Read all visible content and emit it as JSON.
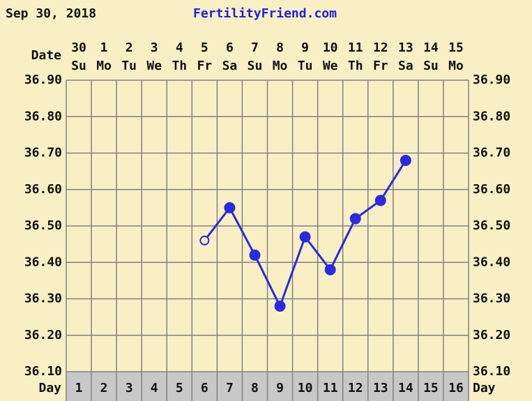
{
  "chart_data": {
    "type": "line",
    "header_date": "Sep 30, 2018",
    "site": "FertilityFriend.com",
    "date_label": "Date",
    "day_label": "Day",
    "dates": [
      "30",
      "1",
      "2",
      "3",
      "4",
      "5",
      "6",
      "7",
      "8",
      "9",
      "10",
      "11",
      "12",
      "13",
      "14",
      "15"
    ],
    "weekdays": [
      "Su",
      "Mo",
      "Tu",
      "We",
      "Th",
      "Fr",
      "Sa",
      "Su",
      "Mo",
      "Tu",
      "We",
      "Th",
      "Fr",
      "Sa",
      "Su",
      "Mo"
    ],
    "categories": [
      "1",
      "2",
      "3",
      "4",
      "5",
      "6",
      "7",
      "8",
      "9",
      "10",
      "11",
      "12",
      "13",
      "14",
      "15",
      "16"
    ],
    "series": [
      {
        "color": "#2a2ae0",
        "values": [
          null,
          null,
          null,
          null,
          null,
          36.46,
          36.55,
          36.42,
          36.28,
          36.47,
          36.38,
          36.52,
          36.57,
          36.68,
          null,
          null
        ],
        "markers": [
          null,
          null,
          null,
          null,
          null,
          "open",
          "filled",
          "filled",
          "filled",
          "filled",
          "filled",
          "filled",
          "filled",
          "filled",
          null,
          null
        ]
      }
    ],
    "ylim": [
      36.1,
      36.9
    ],
    "yticks": [
      {
        "value": 36.1,
        "label": "36.10"
      },
      {
        "value": 36.2,
        "label": "36.20"
      },
      {
        "value": 36.3,
        "label": "36.30"
      },
      {
        "value": 36.4,
        "label": "36.40"
      },
      {
        "value": 36.5,
        "label": "36.50"
      },
      {
        "value": 36.6,
        "label": "36.60"
      },
      {
        "value": 36.7,
        "label": "36.70"
      },
      {
        "value": 36.8,
        "label": "36.80"
      },
      {
        "value": 36.9,
        "label": "36.90"
      }
    ],
    "grid": true
  }
}
